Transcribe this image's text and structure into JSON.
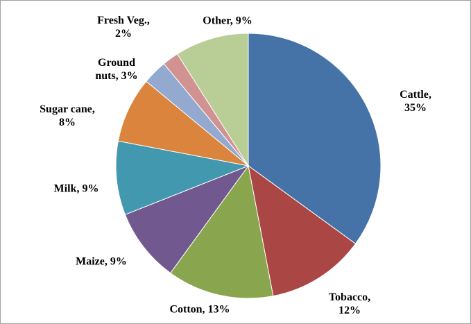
{
  "chart_data": {
    "type": "pie",
    "values": [
      35,
      12,
      13,
      9,
      9,
      8,
      3,
      2,
      9
    ],
    "value_labels": [
      "Cattle, 35%",
      "Tobacco,\n12%",
      "Cotton, 13%",
      "Maize, 9%",
      "Milk, 9%",
      "Sugar cane,\n8%",
      "Ground\nnuts, 3%",
      "Fresh Veg.,\n2%",
      "Other, 9%"
    ],
    "colors": [
      "#4572a7",
      "#aa4643",
      "#89a54e",
      "#71588f",
      "#4198af",
      "#db843d",
      "#93a9cf",
      "#d19392",
      "#b9cd96"
    ]
  }
}
